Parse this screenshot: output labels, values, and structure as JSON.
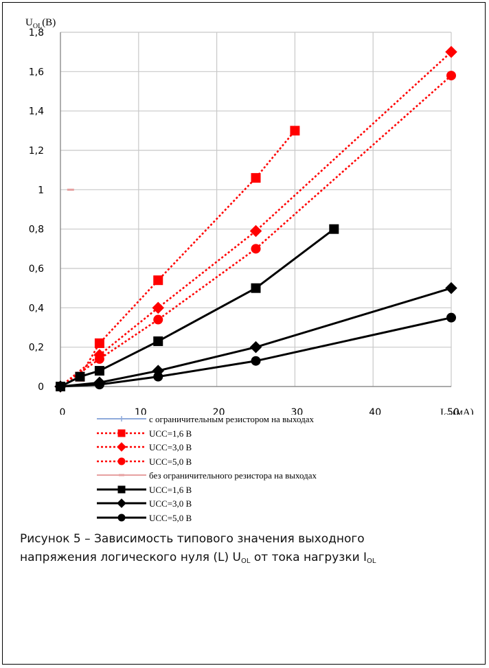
{
  "chart_data": {
    "type": "line",
    "ylabel_main": "U",
    "ylabel_sub": "OL",
    "ylabel_unit": "(В)",
    "xlabel_main": "I",
    "xlabel_sub": "OL",
    "xlabel_unit": "(мА)",
    "xlim": [
      0,
      50
    ],
    "ylim": [
      0,
      1.8
    ],
    "x_ticks": [
      "0",
      "10",
      "20",
      "30",
      "40",
      "50"
    ],
    "y_ticks": [
      "0",
      "0,2",
      "0,4",
      "0,6",
      "0,8",
      "1",
      "1,2",
      "1,4",
      "1,6",
      "1,8"
    ],
    "grid": true,
    "legend_position": "bottom",
    "series": [
      {
        "name": "с ограничительным резистором на выходах",
        "color": "#8eaadb",
        "style": "solid",
        "marker": "plus",
        "x": [],
        "y": []
      },
      {
        "name": "UCC=1,6 В",
        "color": "#ff0000",
        "style": "dotted",
        "marker": "square",
        "x": [
          0,
          2.5,
          5,
          12.5,
          25,
          30
        ],
        "y": [
          0,
          0.05,
          0.22,
          0.54,
          1.06,
          1.3
        ]
      },
      {
        "name": "UCC=3,0 В",
        "color": "#ff0000",
        "style": "dotted",
        "marker": "diamond",
        "x": [
          0,
          5,
          12.5,
          25,
          50
        ],
        "y": [
          0,
          0.16,
          0.4,
          0.79,
          1.7
        ]
      },
      {
        "name": "UCC=5,0 В",
        "color": "#ff0000",
        "style": "dotted",
        "marker": "circle",
        "x": [
          0,
          5,
          12.5,
          25,
          50
        ],
        "y": [
          0,
          0.14,
          0.34,
          0.7,
          1.58
        ]
      },
      {
        "name": "без ограничительного резистора на выходах",
        "color": "#e6a0a0",
        "style": "solid",
        "marker": "dash",
        "x": [
          1.3
        ],
        "y": [
          1
        ]
      },
      {
        "name": "UCC=1,6 В",
        "color": "#000000",
        "style": "solid",
        "marker": "square",
        "x": [
          0,
          2.5,
          5,
          12.5,
          25,
          35
        ],
        "y": [
          0,
          0.05,
          0.08,
          0.23,
          0.5,
          0.8
        ]
      },
      {
        "name": "UCC=3,0 В",
        "color": "#000000",
        "style": "solid",
        "marker": "diamond",
        "x": [
          0,
          5,
          12.5,
          25,
          50
        ],
        "y": [
          0,
          0.02,
          0.08,
          0.2,
          0.5
        ]
      },
      {
        "name": "UCC=5,0 В",
        "color": "#000000",
        "style": "solid",
        "marker": "circle",
        "x": [
          0,
          5,
          12.5,
          25,
          50
        ],
        "y": [
          0,
          0.01,
          0.05,
          0.13,
          0.35
        ]
      }
    ]
  },
  "caption": {
    "line1": "Рисунок 5 – Зависимость типового значения выходного",
    "line2_prefix": "напряжения логического нуля (L) U",
    "line2_sub1": "OL",
    "line2_mid": " от тока нагрузки I",
    "line2_sub2": "OL"
  }
}
